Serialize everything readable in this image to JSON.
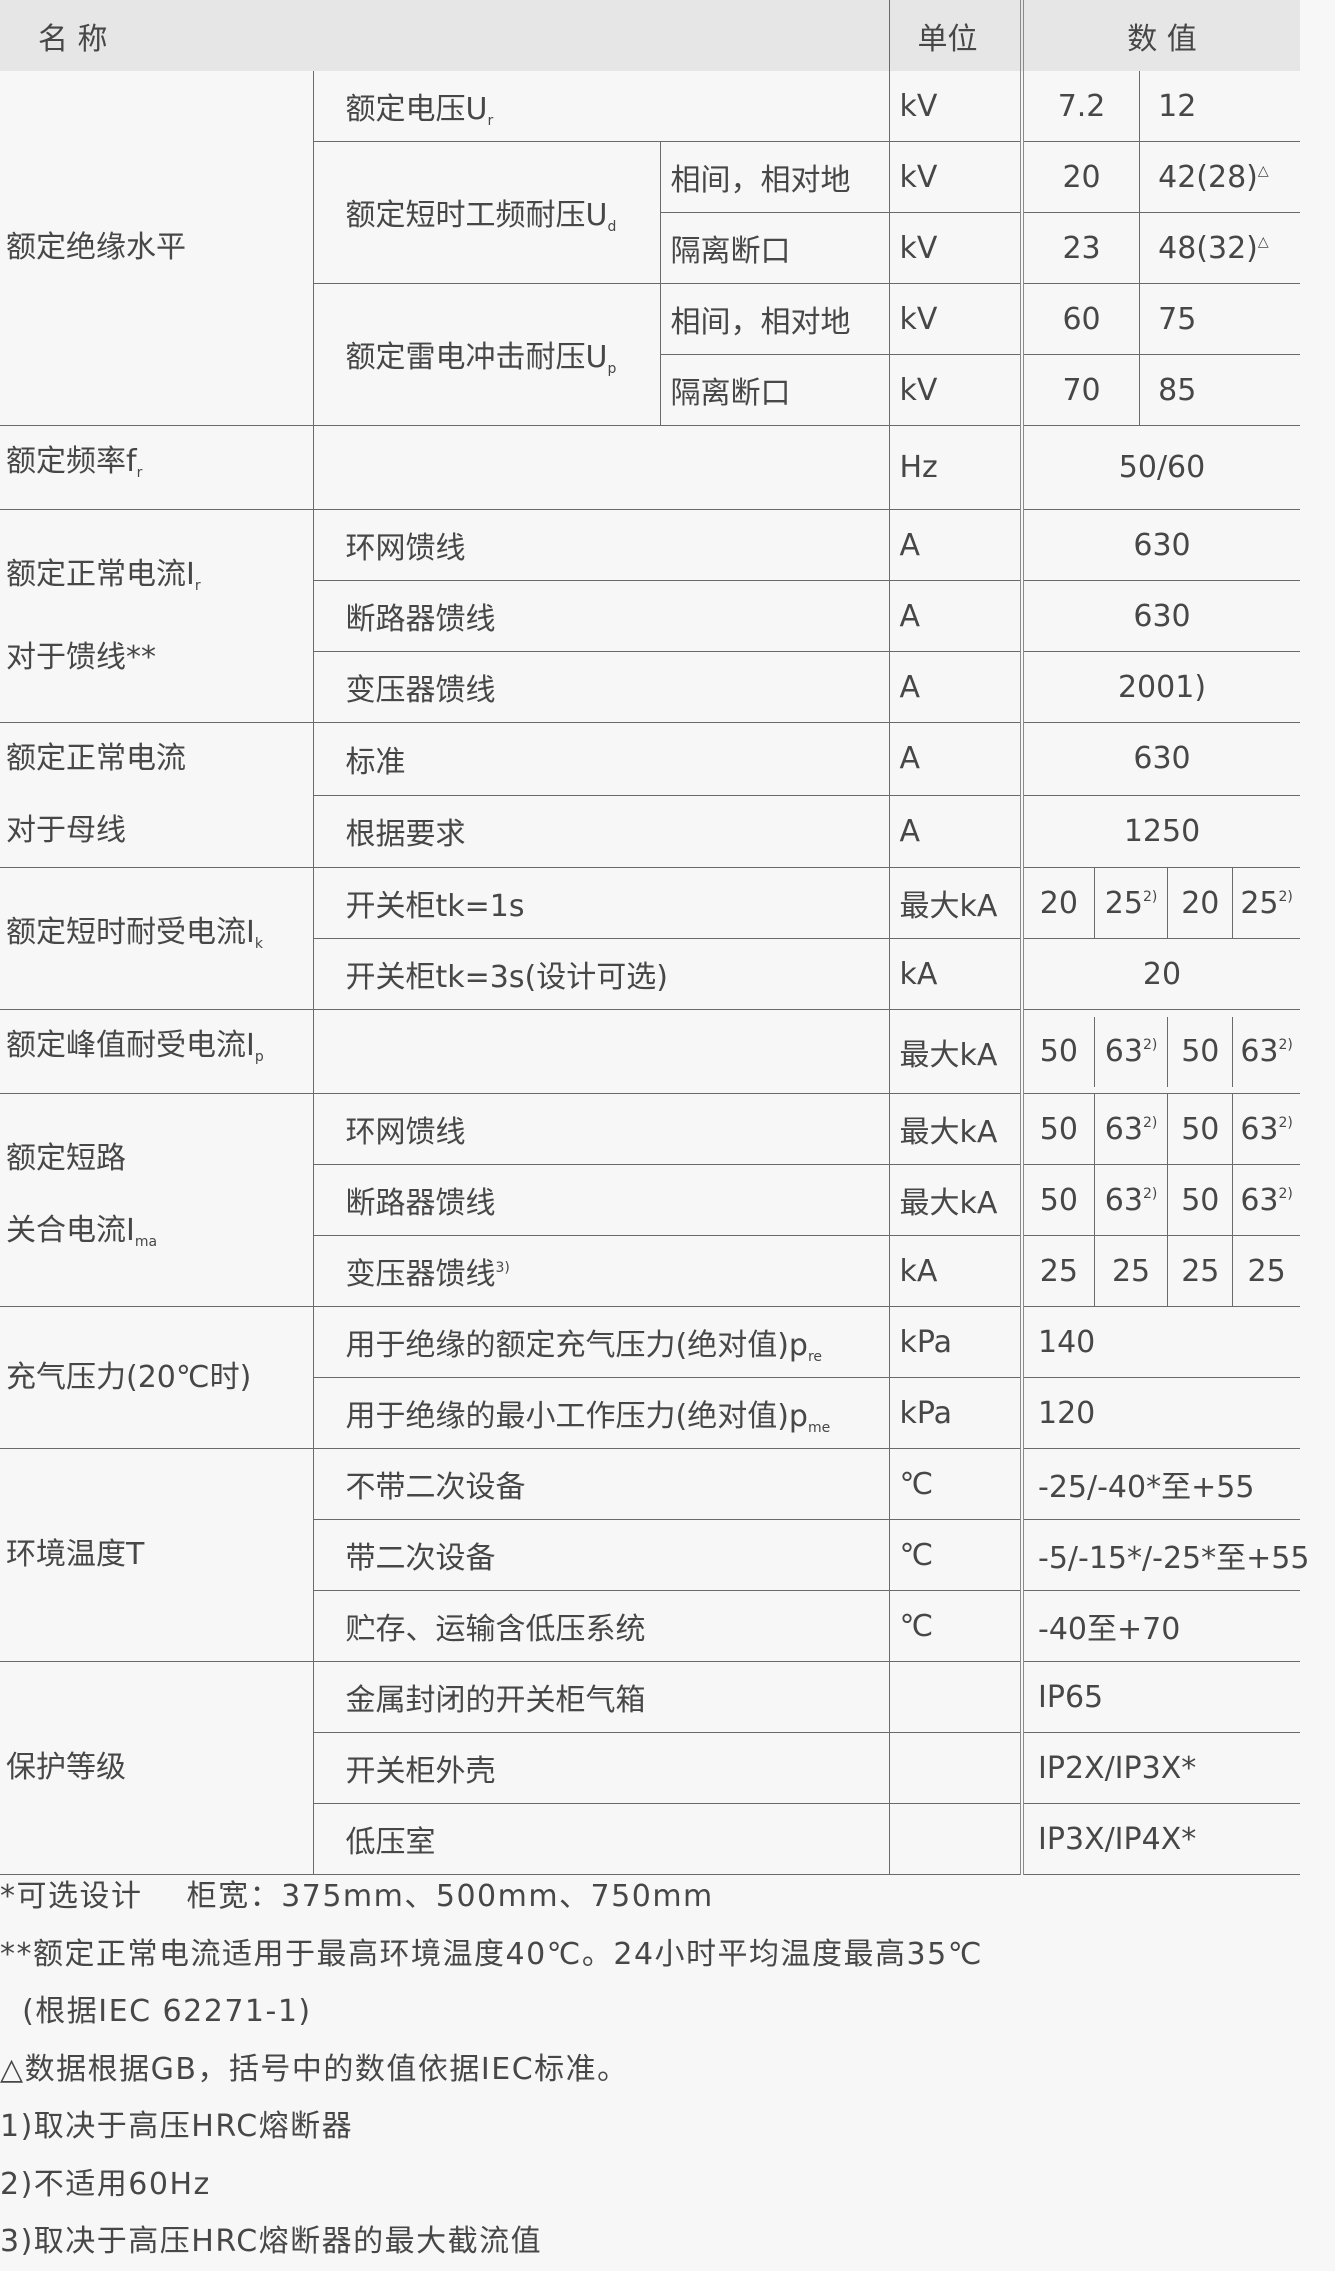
{
  "header": {
    "name": "名 称",
    "unit": "单位",
    "value": "数 值"
  },
  "groups": [
    {
      "text": "额定绝缘水平"
    },
    {
      "text": "额定频率f",
      "sub": "r"
    },
    {
      "text": "额定正常电流I",
      "sub": "r",
      "line2": "对于馈线**"
    },
    {
      "text": "额定正常电流",
      "line2": "对于母线"
    },
    {
      "text": "额定短时耐受电流I",
      "sub": "k"
    },
    {
      "text": "额定峰值耐受电流I",
      "sub": "p"
    },
    {
      "text": "额定短路",
      "line2": "关合电流I",
      "line2_sub": "ma"
    },
    {
      "text": "充气压力(20℃时)"
    },
    {
      "text": "环境温度T"
    },
    {
      "text": "保护等级"
    }
  ],
  "rows": [
    {
      "item": {
        "text": "额定电压U",
        "sub": "r"
      },
      "unit": "kV",
      "values": [
        {
          "v": "7.2"
        },
        {
          "v": "12"
        }
      ]
    },
    {
      "item": {
        "text": "额定短时工频耐压U",
        "sub": "d"
      },
      "subitem": "相间，相对地",
      "unit": "kV",
      "values": [
        {
          "v": "20"
        },
        {
          "v": "42(28)",
          "sup": "△"
        }
      ]
    },
    {
      "subitem": "隔离断口",
      "unit": "kV",
      "values": [
        {
          "v": "23"
        },
        {
          "v": "48(32)",
          "sup": "△"
        }
      ]
    },
    {
      "item": {
        "text": "额定雷电冲击耐压U",
        "sub": "p"
      },
      "subitem": "相间，相对地",
      "unit": "kV",
      "values": [
        {
          "v": "60"
        },
        {
          "v": "75"
        }
      ]
    },
    {
      "subitem": "隔离断口",
      "unit": "kV",
      "values": [
        {
          "v": "70"
        },
        {
          "v": "85"
        }
      ]
    },
    {
      "item": {
        "text": ""
      },
      "unit": "Hz",
      "values": [
        {
          "v": "50/60"
        }
      ]
    },
    {
      "item": {
        "text": "环网馈线"
      },
      "unit": "A",
      "values": [
        {
          "v": "630"
        }
      ]
    },
    {
      "item": {
        "text": "断路器馈线"
      },
      "unit": "A",
      "values": [
        {
          "v": "630"
        }
      ]
    },
    {
      "item": {
        "text": "变压器馈线"
      },
      "unit": "A",
      "values": [
        {
          "v": "2001)"
        }
      ]
    },
    {
      "item": {
        "text": "标准"
      },
      "unit": "A",
      "values": [
        {
          "v": "630"
        }
      ]
    },
    {
      "item": {
        "text": "根据要求"
      },
      "unit": "A",
      "values": [
        {
          "v": "1250"
        }
      ]
    },
    {
      "item": {
        "text": "开关柜tk=1s"
      },
      "unit": "最大kA",
      "values": [
        {
          "v": "20"
        },
        {
          "v": "25",
          "sup": "2)"
        },
        {
          "v": "20"
        },
        {
          "v": "25",
          "sup": "2)"
        }
      ]
    },
    {
      "item": {
        "text": "开关柜tk=3s(设计可选)"
      },
      "unit": "kA",
      "values": [
        {
          "v": "20"
        }
      ]
    },
    {
      "item": {
        "text": ""
      },
      "unit": "最大kA",
      "values": [
        {
          "v": "50"
        },
        {
          "v": "63",
          "sup": "2)"
        },
        {
          "v": "50"
        },
        {
          "v": "63",
          "sup": "2)"
        }
      ]
    },
    {
      "item": {
        "text": "环网馈线"
      },
      "unit": "最大kA",
      "values": [
        {
          "v": "50"
        },
        {
          "v": "63",
          "sup": "2)"
        },
        {
          "v": "50"
        },
        {
          "v": "63",
          "sup": "2)"
        }
      ]
    },
    {
      "item": {
        "text": "断路器馈线"
      },
      "unit": "最大kA",
      "values": [
        {
          "v": "50"
        },
        {
          "v": "63",
          "sup": "2)"
        },
        {
          "v": "50"
        },
        {
          "v": "63",
          "sup": "2)"
        }
      ]
    },
    {
      "item": {
        "text": "变压器馈线",
        "sup": "3)"
      },
      "unit": "kA",
      "values": [
        {
          "v": "25"
        },
        {
          "v": "25"
        },
        {
          "v": "25"
        },
        {
          "v": "25"
        }
      ]
    },
    {
      "item": {
        "text": "用于绝缘的额定充气压力(绝对值)p",
        "sub": "re"
      },
      "unit": "kPa",
      "values": [
        {
          "v": "140"
        }
      ],
      "align": "left"
    },
    {
      "item": {
        "text": "用于绝缘的最小工作压力(绝对值)p",
        "sub": "me"
      },
      "unit": "kPa",
      "values": [
        {
          "v": "120"
        }
      ],
      "align": "left"
    },
    {
      "item": {
        "text": "不带二次设备"
      },
      "unit": "℃",
      "values": [
        {
          "v": "-25/-40*至+55"
        }
      ],
      "align": "left"
    },
    {
      "item": {
        "text": "带二次设备"
      },
      "unit": "℃",
      "values": [
        {
          "v": "-5/-15*/-25*至+55"
        }
      ],
      "align": "left"
    },
    {
      "item": {
        "text": "贮存、运输含低压系统"
      },
      "unit": "℃",
      "values": [
        {
          "v": "-40至+70"
        }
      ],
      "align": "left"
    },
    {
      "item": {
        "text": "金属封闭的开关柜气箱"
      },
      "unit": "",
      "values": [
        {
          "v": "IP65"
        }
      ],
      "align": "left"
    },
    {
      "item": {
        "text": "开关柜外壳"
      },
      "unit": "",
      "values": [
        {
          "v": "IP2X/IP3X*"
        }
      ],
      "align": "left"
    },
    {
      "item": {
        "text": "低压室"
      },
      "unit": "",
      "values": [
        {
          "v": "IP3X/IP4X*"
        }
      ],
      "align": "left"
    }
  ],
  "notes": [
    "*可选设计    柜宽：375mm、500mm、750mm",
    "**额定正常电流适用于最高环境温度40℃。24小时平均温度最高35℃",
    "  (根据IEC 62271-1)",
    "△数据根据GB，括号中的数值依据IEC标准。",
    "1)取决于高压HRC熔断器",
    "2)不适用60Hz",
    "3)取决于高压HRC熔断器的最大截流值"
  ]
}
